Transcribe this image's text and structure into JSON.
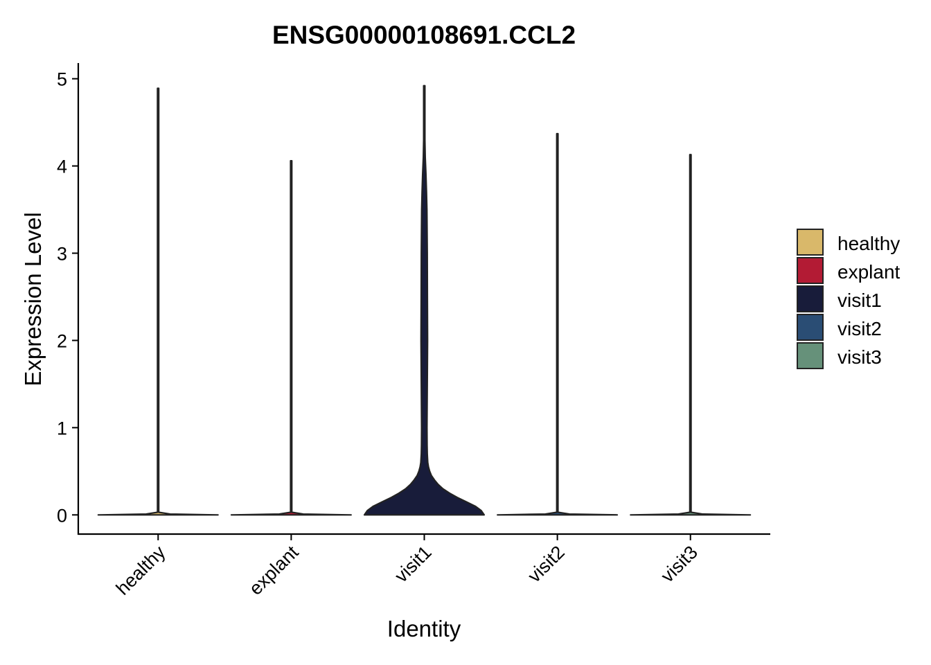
{
  "chart_data": {
    "type": "violin",
    "title": "ENSG00000108691.CCL2",
    "xlabel": "Identity",
    "ylabel": "Expression Level",
    "categories": [
      "healthy",
      "explant",
      "visit1",
      "visit2",
      "visit3"
    ],
    "colors": [
      "#D9B86A",
      "#B31B34",
      "#181C3A",
      "#2A4D74",
      "#66917A"
    ],
    "ylim": [
      -0.22,
      5.18
    ],
    "yticks": [
      0,
      1,
      2,
      3,
      4,
      5
    ],
    "series": [
      {
        "category": "healthy",
        "max": 4.89,
        "profile": [
          [
            0,
            1.0
          ],
          [
            0.01,
            0.2
          ],
          [
            0.03,
            0.01
          ],
          [
            4.89,
            0.01
          ]
        ]
      },
      {
        "category": "explant",
        "max": 4.06,
        "profile": [
          [
            0,
            1.0
          ],
          [
            0.01,
            0.2
          ],
          [
            0.03,
            0.01
          ],
          [
            4.06,
            0.01
          ]
        ]
      },
      {
        "category": "visit1",
        "max": 4.92,
        "profile": [
          [
            0,
            1.0
          ],
          [
            0.05,
            0.95
          ],
          [
            0.1,
            0.85
          ],
          [
            0.15,
            0.7
          ],
          [
            0.2,
            0.55
          ],
          [
            0.25,
            0.42
          ],
          [
            0.3,
            0.31
          ],
          [
            0.35,
            0.23
          ],
          [
            0.4,
            0.17
          ],
          [
            0.45,
            0.12
          ],
          [
            0.5,
            0.09
          ],
          [
            0.55,
            0.07
          ],
          [
            0.6,
            0.058
          ],
          [
            0.7,
            0.05
          ],
          [
            0.8,
            0.047
          ],
          [
            1.0,
            0.045
          ],
          [
            1.5,
            0.05
          ],
          [
            2.0,
            0.055
          ],
          [
            2.5,
            0.052
          ],
          [
            3.0,
            0.05
          ],
          [
            3.5,
            0.044
          ],
          [
            3.7,
            0.037
          ],
          [
            3.9,
            0.028
          ],
          [
            4.1,
            0.016
          ],
          [
            4.3,
            0.01
          ],
          [
            4.92,
            0.008
          ]
        ]
      },
      {
        "category": "visit2",
        "max": 4.37,
        "profile": [
          [
            0,
            1.0
          ],
          [
            0.01,
            0.2
          ],
          [
            0.03,
            0.01
          ],
          [
            4.37,
            0.01
          ]
        ]
      },
      {
        "category": "visit3",
        "max": 4.13,
        "profile": [
          [
            0,
            1.0
          ],
          [
            0.01,
            0.2
          ],
          [
            0.03,
            0.01
          ],
          [
            4.13,
            0.01
          ]
        ]
      }
    ],
    "legend": {
      "position": "right",
      "items": [
        {
          "label": "healthy",
          "color": "#D9B86A"
        },
        {
          "label": "explant",
          "color": "#B31B34"
        },
        {
          "label": "visit1",
          "color": "#181C3A"
        },
        {
          "label": "visit2",
          "color": "#2A4D74"
        },
        {
          "label": "visit3",
          "color": "#66917A"
        }
      ]
    },
    "grid": false
  }
}
